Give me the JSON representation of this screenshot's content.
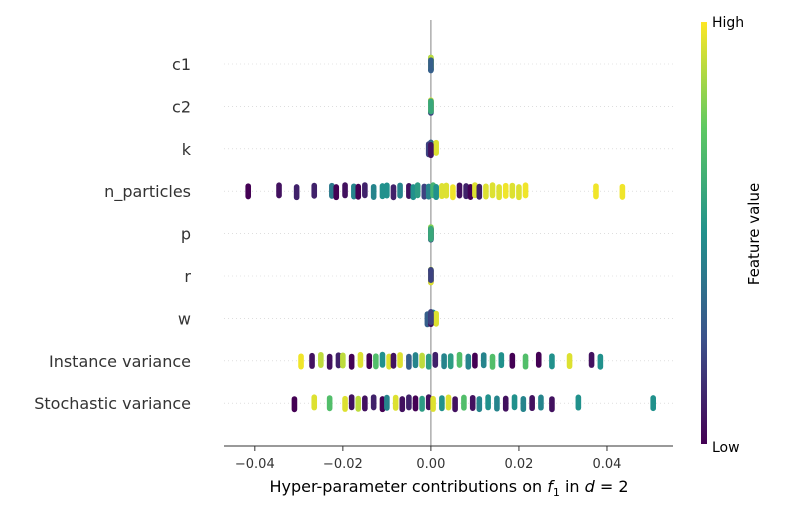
{
  "chart_data": {
    "type": "scatter",
    "subtype": "shap-beeswarm",
    "title": "",
    "xlabel_parts": {
      "prefix": "Hyper-parameter contributions on ",
      "f": "f",
      "sub": "1",
      "mid": " in ",
      "d": "d",
      "eq": " = 2"
    },
    "xlim": [
      -0.047,
      0.055
    ],
    "xticks": [
      -0.04,
      -0.02,
      0.0,
      0.02,
      0.04
    ],
    "xtick_labels": [
      "−0.04",
      "−0.02",
      "0.00",
      "0.02",
      "0.04"
    ],
    "colorbar": {
      "title": "Feature value",
      "high_label": "High",
      "low_label": "Low",
      "colormap": [
        "#440154",
        "#3b528b",
        "#21918c",
        "#5ec962",
        "#fde725"
      ]
    },
    "features": [
      {
        "name": "c1",
        "points": [
          [
            0.0,
            0.2
          ],
          [
            0.0,
            0.5
          ],
          [
            0.0,
            0.8
          ],
          [
            0.0,
            0.1
          ],
          [
            0.0,
            0.6
          ],
          [
            0.0,
            0.9
          ],
          [
            0.0,
            0.3
          ]
        ]
      },
      {
        "name": "c2",
        "points": [
          [
            0.0,
            0.7
          ],
          [
            0.0,
            0.9
          ],
          [
            0.0,
            0.4
          ],
          [
            0.0,
            0.2
          ],
          [
            0.0,
            0.95
          ],
          [
            0.0,
            0.6
          ]
        ]
      },
      {
        "name": "k",
        "points": [
          [
            0.0,
            0.1
          ],
          [
            0.0,
            0.3
          ],
          [
            0.0,
            0.5
          ],
          [
            -0.0005,
            0.2
          ],
          [
            0.0012,
            0.95
          ],
          [
            0.0,
            0.05
          ]
        ]
      },
      {
        "name": "n_particles",
        "points": [
          [
            -0.0415,
            0.0
          ],
          [
            -0.0345,
            0.05
          ],
          [
            -0.0305,
            0.1
          ],
          [
            -0.0265,
            0.1
          ],
          [
            -0.0225,
            0.4
          ],
          [
            -0.0215,
            0.0
          ],
          [
            -0.0195,
            0.05
          ],
          [
            -0.0175,
            0.45
          ],
          [
            -0.0165,
            0.0
          ],
          [
            -0.015,
            0.1
          ],
          [
            -0.013,
            0.45
          ],
          [
            -0.011,
            0.5
          ],
          [
            -0.01,
            0.5
          ],
          [
            -0.0085,
            0.1
          ],
          [
            -0.007,
            0.45
          ],
          [
            -0.005,
            0.05
          ],
          [
            -0.004,
            0.5
          ],
          [
            -0.003,
            0.55
          ],
          [
            -0.0015,
            0.2
          ],
          [
            -0.0005,
            0.45
          ],
          [
            0.0005,
            0.65
          ],
          [
            0.0012,
            0.5
          ],
          [
            0.0025,
            0.95
          ],
          [
            0.0035,
            0.95
          ],
          [
            0.005,
            0.98
          ],
          [
            0.0065,
            0.05
          ],
          [
            0.008,
            0.1
          ],
          [
            0.009,
            0.0
          ],
          [
            0.01,
            0.95
          ],
          [
            0.011,
            0.1
          ],
          [
            0.0125,
            0.95
          ],
          [
            0.014,
            0.95
          ],
          [
            0.0155,
            0.95
          ],
          [
            0.017,
            0.98
          ],
          [
            0.0185,
            0.95
          ],
          [
            0.02,
            0.95
          ],
          [
            0.0215,
            0.98
          ],
          [
            0.0375,
            0.98
          ],
          [
            0.0435,
            0.98
          ]
        ]
      },
      {
        "name": "p",
        "points": [
          [
            0.0,
            0.95
          ],
          [
            0.0,
            0.1
          ],
          [
            0.0,
            0.4
          ],
          [
            0.0,
            0.8
          ],
          [
            0.0,
            0.2
          ],
          [
            0.0,
            0.6
          ]
        ]
      },
      {
        "name": "r",
        "points": [
          [
            0.0,
            0.9
          ],
          [
            0.0,
            0.1
          ],
          [
            0.0,
            0.05
          ],
          [
            0.0,
            0.3
          ],
          [
            0.0,
            0.95
          ],
          [
            0.0,
            0.2
          ]
        ]
      },
      {
        "name": "w",
        "points": [
          [
            0.0,
            0.1
          ],
          [
            -0.0008,
            0.3
          ],
          [
            0.0005,
            0.5
          ],
          [
            0.0012,
            0.95
          ],
          [
            0.0,
            0.05
          ],
          [
            0.0,
            0.2
          ]
        ]
      },
      {
        "name": "Instance variance",
        "points": [
          [
            -0.0295,
            0.98
          ],
          [
            -0.027,
            0.05
          ],
          [
            -0.025,
            0.9
          ],
          [
            -0.023,
            0.05
          ],
          [
            -0.021,
            0.1
          ],
          [
            -0.02,
            0.9
          ],
          [
            -0.018,
            0.0
          ],
          [
            -0.016,
            0.95
          ],
          [
            -0.014,
            0.0
          ],
          [
            -0.0125,
            0.7
          ],
          [
            -0.011,
            0.5
          ],
          [
            -0.0095,
            0.95
          ],
          [
            -0.0085,
            0.05
          ],
          [
            -0.007,
            0.95
          ],
          [
            -0.005,
            0.3
          ],
          [
            -0.0035,
            0.45
          ],
          [
            -0.002,
            0.9
          ],
          [
            -0.0005,
            0.55
          ],
          [
            0.001,
            0.1
          ],
          [
            0.003,
            0.45
          ],
          [
            0.0045,
            0.55
          ],
          [
            0.0065,
            0.7
          ],
          [
            0.0085,
            0.45
          ],
          [
            0.01,
            0.0
          ],
          [
            0.012,
            0.45
          ],
          [
            0.014,
            0.7
          ],
          [
            0.016,
            0.5
          ],
          [
            0.0185,
            0.0
          ],
          [
            0.0215,
            0.7
          ],
          [
            0.0245,
            0.0
          ],
          [
            0.0275,
            0.5
          ],
          [
            0.0315,
            0.95
          ],
          [
            0.0365,
            0.05
          ],
          [
            0.0385,
            0.5
          ]
        ]
      },
      {
        "name": "Stochastic variance",
        "points": [
          [
            -0.031,
            0.0
          ],
          [
            -0.0265,
            0.95
          ],
          [
            -0.023,
            0.7
          ],
          [
            -0.0195,
            0.95
          ],
          [
            -0.018,
            0.05
          ],
          [
            -0.0165,
            0.9
          ],
          [
            -0.015,
            0.05
          ],
          [
            -0.013,
            0.1
          ],
          [
            -0.011,
            0.0
          ],
          [
            -0.01,
            0.45
          ],
          [
            -0.008,
            0.95
          ],
          [
            -0.0065,
            0.05
          ],
          [
            -0.005,
            0.1
          ],
          [
            -0.0035,
            0.0
          ],
          [
            -0.002,
            0.55
          ],
          [
            -0.0005,
            0.05
          ],
          [
            0.0005,
            0.95
          ],
          [
            0.0025,
            0.5
          ],
          [
            0.004,
            0.95
          ],
          [
            0.0055,
            0.05
          ],
          [
            0.0075,
            0.7
          ],
          [
            0.0095,
            0.05
          ],
          [
            0.011,
            0.45
          ],
          [
            0.013,
            0.5
          ],
          [
            0.015,
            0.45
          ],
          [
            0.017,
            0.05
          ],
          [
            0.019,
            0.5
          ],
          [
            0.021,
            0.45
          ],
          [
            0.023,
            0.05
          ],
          [
            0.025,
            0.45
          ],
          [
            0.0275,
            0.05
          ],
          [
            0.0335,
            0.5
          ],
          [
            0.0505,
            0.5
          ]
        ]
      }
    ]
  }
}
